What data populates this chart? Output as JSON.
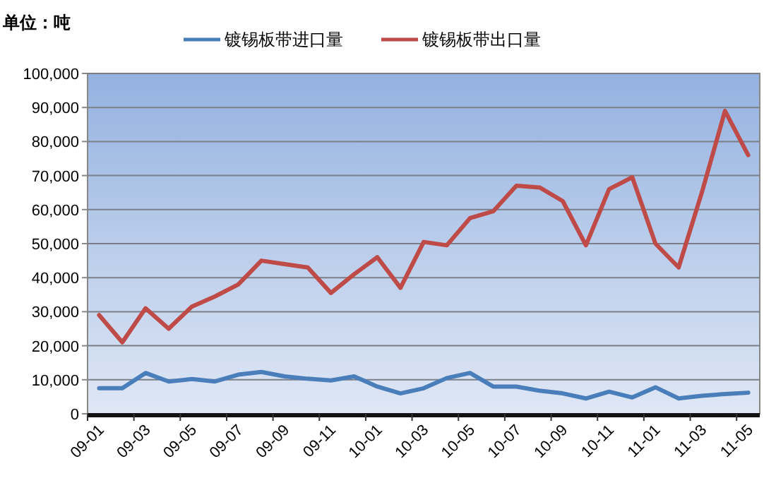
{
  "chart_data": {
    "type": "line",
    "ylabel": "单位：吨",
    "categories": [
      "09-01",
      null,
      "09-03",
      null,
      "09-05",
      null,
      "09-07",
      null,
      "09-09",
      null,
      "09-11",
      null,
      "10-01",
      null,
      "10-03",
      null,
      "10-05",
      null,
      "10-07",
      null,
      "10-09",
      null,
      "10-11",
      null,
      "11-01",
      null,
      "11-03",
      null,
      "11-05"
    ],
    "series": [
      {
        "name": "镀锡板带进口量",
        "color": "#4a7ebb",
        "values": [
          7500,
          7500,
          12000,
          9500,
          10200,
          9500,
          11500,
          12300,
          11000,
          10300,
          9800,
          11000,
          8000,
          6000,
          7500,
          10500,
          12000,
          8000,
          8000,
          6800,
          6000,
          4500,
          6500,
          4800,
          7800,
          4500,
          5300,
          5800,
          6200
        ]
      },
      {
        "name": "镀锡板带出口量",
        "color": "#be4b48",
        "values": [
          29000,
          21000,
          31000,
          25000,
          31500,
          34500,
          38000,
          45000,
          44000,
          43000,
          35500,
          41000,
          46000,
          37000,
          50500,
          49500,
          57500,
          59500,
          67000,
          66500,
          62500,
          49500,
          66000,
          69500,
          50000,
          43000,
          65000,
          89000,
          76000
        ]
      }
    ],
    "ylim": [
      0,
      100000
    ],
    "yticks": [
      0,
      {
        "value": 10000,
        "label": "10,000"
      },
      {
        "value": 20000,
        "label": "20,000"
      },
      {
        "value": 30000,
        "label": "30,000"
      },
      {
        "value": 40000,
        "label": "40,000"
      },
      {
        "value": 50000,
        "label": "50,000"
      },
      {
        "value": 60000,
        "label": "60,000"
      },
      {
        "value": 70000,
        "label": "70,000"
      },
      {
        "value": 80000,
        "label": "80,000"
      },
      {
        "value": 90000,
        "label": "90,000"
      },
      {
        "value": 100000,
        "label": "100,000"
      }
    ],
    "grid": "y",
    "legend": "top"
  }
}
